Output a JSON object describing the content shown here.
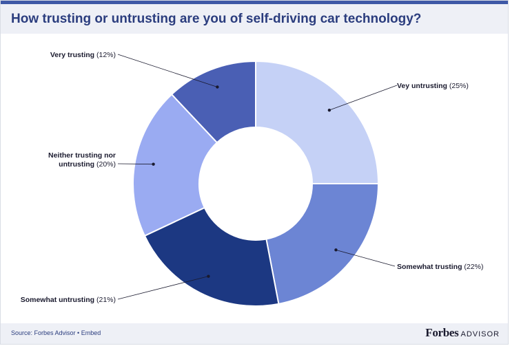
{
  "chart_data": {
    "type": "pie",
    "donut": true,
    "title": "How trusting or untrusting are you of self-driving car technology?",
    "slices": [
      {
        "label": "Vey untrusting",
        "value_label": "(25%)",
        "value": 25,
        "color": "#c5d1f6"
      },
      {
        "label": "Somewhat trusting",
        "value_label": "(22%)",
        "value": 22,
        "color": "#6c85d4"
      },
      {
        "label": "Somewhat untrusting",
        "value_label": "(21%)",
        "value": 21,
        "color": "#1c3882"
      },
      {
        "label": "Neither trusting nor untrusting",
        "label_lines": [
          "Neither trusting nor",
          "untrusting"
        ],
        "value_label": "(20%)",
        "value": 20,
        "color": "#9aabf2"
      },
      {
        "label": "Very trusting",
        "value_label": "(12%)",
        "value": 12,
        "color": "#4a5fb4"
      }
    ]
  },
  "footer": {
    "source": "Source: Forbes Advisor • Embed",
    "brand_name": "Forbes",
    "brand_sub": "ADVISOR"
  }
}
